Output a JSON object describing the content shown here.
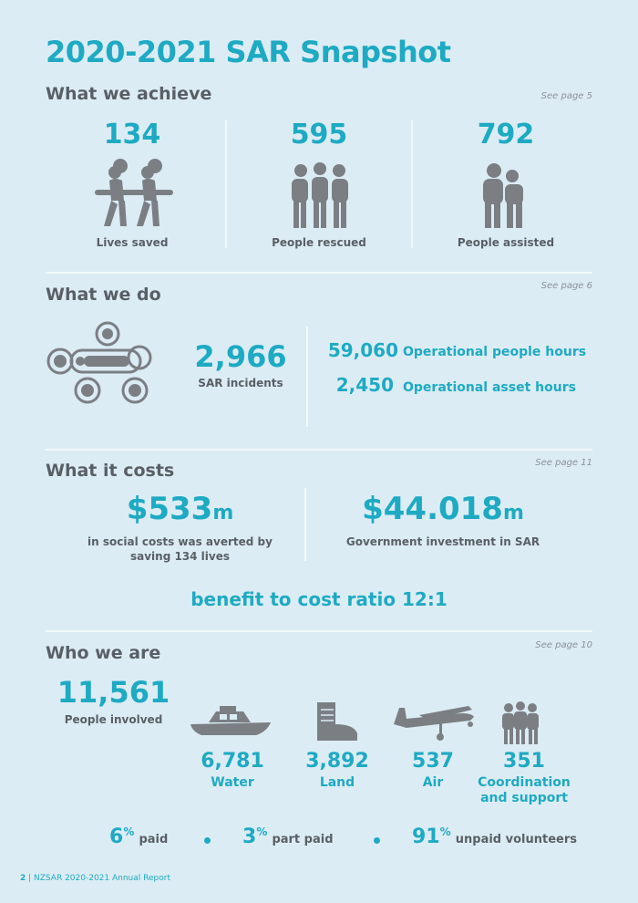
{
  "title": "2020-2021 SAR Snapshot",
  "achieve": {
    "heading": "What we achieve",
    "see": "See page 5",
    "stats": [
      {
        "value": "134",
        "label": "Lives saved",
        "icon": "stretcher-bearers-icon"
      },
      {
        "value": "595",
        "label": "People rescued",
        "icon": "rescued-group-icon"
      },
      {
        "value": "792",
        "label": "People assisted",
        "icon": "assisted-pair-icon"
      }
    ]
  },
  "do": {
    "heading": "What we do",
    "see": "See page 6",
    "incidents_value": "2,966",
    "incidents_label": "SAR incidents",
    "people_hours_value": "59,060",
    "people_hours_label": "Operational people hours",
    "asset_hours_value": "2,450",
    "asset_hours_label": "Operational asset hours"
  },
  "costs": {
    "heading": "What it costs",
    "see": "See page 11",
    "social_value": "$533",
    "social_unit": "m",
    "social_label_1": "in social costs was averted by",
    "social_label_2": "saving 134 lives",
    "gov_value": "$44.018",
    "gov_unit": "m",
    "gov_label": "Government investment in SAR",
    "ratio": "benefit to cost ratio 12:1"
  },
  "who": {
    "heading": "Who we are",
    "see": "See page 10",
    "people_value": "11,561",
    "people_label": "People involved",
    "groups": [
      {
        "value": "6,781",
        "label": "Water",
        "icon": "boat-icon"
      },
      {
        "value": "3,892",
        "label": "Land",
        "icon": "boot-icon"
      },
      {
        "value": "537",
        "label": "Air",
        "icon": "plane-icon"
      },
      {
        "value": "351",
        "label": "Coordination",
        "label2": "and support",
        "icon": "team-icon"
      }
    ],
    "paid": [
      {
        "value": "6",
        "sup": "%",
        "label": "paid"
      },
      {
        "value": "3",
        "sup": "%",
        "label": "part paid"
      },
      {
        "value": "91",
        "sup": "%",
        "label": "unpaid volunteers"
      }
    ]
  },
  "footer": {
    "page": "2",
    "sep": " | ",
    "text": "NZSAR 2020-2021 Annual Report"
  },
  "colors": {
    "accent": "#1eaac3",
    "text": "#595f66",
    "background": "#dcecf4",
    "icon": "#7b7f84"
  }
}
